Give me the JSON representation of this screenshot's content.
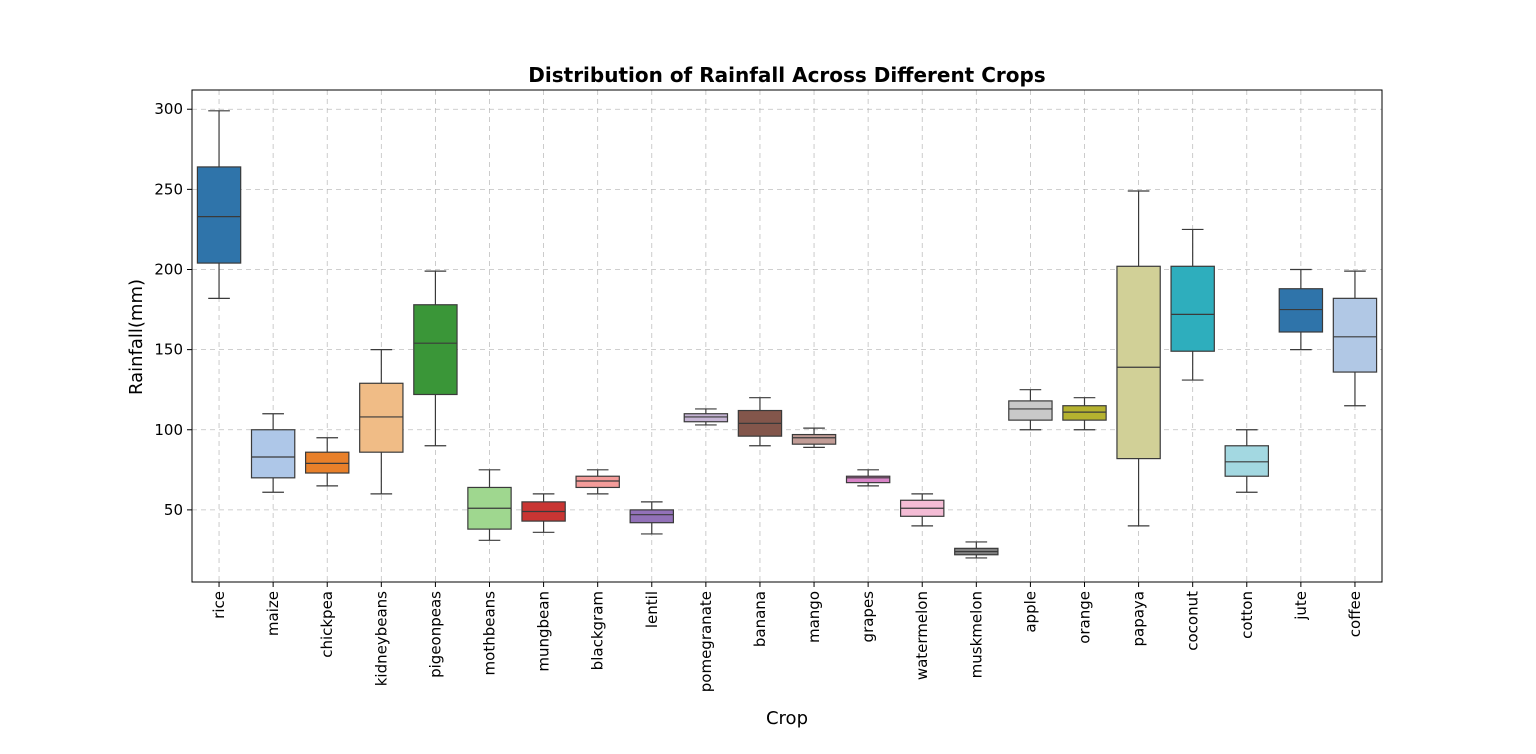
{
  "chart_data": {
    "type": "box",
    "title": "Distribution of Rainfall Across Different Crops",
    "xlabel": "Crop",
    "ylabel": "Rainfall(mm)",
    "ylim": [
      5,
      312
    ],
    "yticks": [
      50,
      100,
      150,
      200,
      250,
      300
    ],
    "grid": true,
    "categories": [
      "rice",
      "maize",
      "chickpea",
      "kidneybeans",
      "pigeonpeas",
      "mothbeans",
      "mungbean",
      "blackgram",
      "lentil",
      "pomegranate",
      "banana",
      "mango",
      "grapes",
      "watermelon",
      "muskmelon",
      "apple",
      "orange",
      "papaya",
      "coconut",
      "cotton",
      "jute",
      "coffee"
    ],
    "boxes": [
      {
        "min": 182,
        "q1": 204,
        "median": 233,
        "q3": 264,
        "max": 299,
        "color": "#2f74aa"
      },
      {
        "min": 61,
        "q1": 70,
        "median": 83,
        "q3": 100,
        "max": 110,
        "color": "#aec7e8"
      },
      {
        "min": 65,
        "q1": 73,
        "median": 79,
        "q3": 86,
        "max": 95,
        "color": "#e8802a"
      },
      {
        "min": 60,
        "q1": 86,
        "median": 108,
        "q3": 129,
        "max": 150,
        "color": "#f0bc86"
      },
      {
        "min": 90,
        "q1": 122,
        "median": 154,
        "q3": 178,
        "max": 199,
        "color": "#3a9638"
      },
      {
        "min": 31,
        "q1": 38,
        "median": 51,
        "q3": 64,
        "max": 75,
        "color": "#9fd78f"
      },
      {
        "min": 36,
        "q1": 43,
        "median": 49,
        "q3": 55,
        "max": 60,
        "color": "#c93533"
      },
      {
        "min": 60,
        "q1": 64,
        "median": 68,
        "q3": 71,
        "max": 75,
        "color": "#f49c9a"
      },
      {
        "min": 35,
        "q1": 42,
        "median": 47,
        "q3": 50,
        "max": 55,
        "color": "#9271b8"
      },
      {
        "min": 103,
        "q1": 105,
        "median": 108,
        "q3": 110,
        "max": 113,
        "color": "#c6b5d5"
      },
      {
        "min": 90,
        "q1": 96,
        "median": 104,
        "q3": 112,
        "max": 120,
        "color": "#83564b"
      },
      {
        "min": 89,
        "q1": 91,
        "median": 95,
        "q3": 97,
        "max": 101,
        "color": "#c19c96"
      },
      {
        "min": 65,
        "q1": 67,
        "median": 70,
        "q3": 71,
        "max": 75,
        "color": "#d884c7"
      },
      {
        "min": 40,
        "q1": 46,
        "median": 51,
        "q3": 56,
        "max": 60,
        "color": "#f4bcd5"
      },
      {
        "min": 20,
        "q1": 22,
        "median": 24,
        "q3": 26,
        "max": 30,
        "color": "#7f7f7f"
      },
      {
        "min": 100,
        "q1": 106,
        "median": 113,
        "q3": 118,
        "max": 125,
        "color": "#c9c9c9"
      },
      {
        "min": 100,
        "q1": 106,
        "median": 111,
        "q3": 115,
        "max": 120,
        "color": "#b5b22f"
      },
      {
        "min": 40,
        "q1": 82,
        "median": 139,
        "q3": 202,
        "max": 249,
        "color": "#d1d097"
      },
      {
        "min": 131,
        "q1": 149,
        "median": 172,
        "q3": 202,
        "max": 225,
        "color": "#2eaebd"
      },
      {
        "min": 61,
        "q1": 71,
        "median": 80,
        "q3": 90,
        "max": 100,
        "color": "#a3d8e1"
      },
      {
        "min": 150,
        "q1": 161,
        "median": 175,
        "q3": 188,
        "max": 200,
        "color": "#2f74aa"
      },
      {
        "min": 115,
        "q1": 136,
        "median": 158,
        "q3": 182,
        "max": 199,
        "color": "#b1c8e5"
      }
    ]
  }
}
